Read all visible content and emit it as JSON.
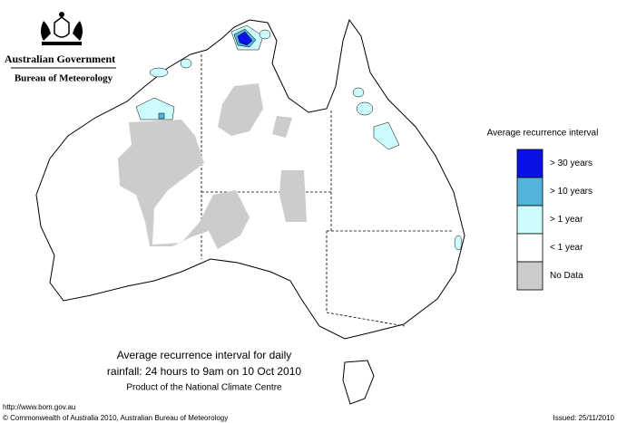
{
  "header": {
    "government": "Australian Government",
    "bureau": "Bureau of Meteorology"
  },
  "legend": {
    "title": "Average recurrence interval",
    "items": [
      {
        "label": "> 30 years",
        "color": "#0a10e8"
      },
      {
        "label": "> 10 years",
        "color": "#55b4dc"
      },
      {
        "label": "> 1 year",
        "color": "#ccfcfc"
      },
      {
        "label": "< 1 year",
        "color": "#ffffff"
      },
      {
        "label": "No Data",
        "color": "#cccccc"
      }
    ]
  },
  "caption": {
    "line1": "Average recurrence interval for daily",
    "line2": "rainfall: 24 hours to 9am on 10 Oct 2010",
    "product": "Product of the National Climate Centre"
  },
  "footer": {
    "url": "http://www.bom.gov.au",
    "copyright": "© Commonwealth of Australia 2010, Australian Bureau of Meteorology",
    "issued": "Issued: 25/11/2010"
  }
}
